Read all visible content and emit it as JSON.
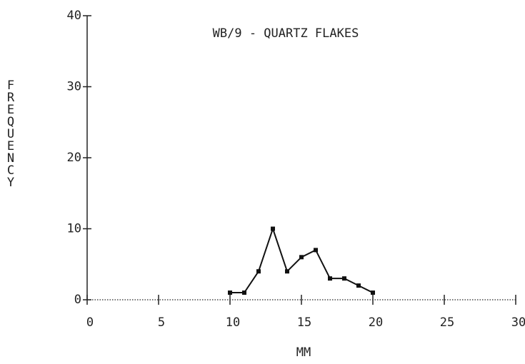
{
  "chart_data": {
    "type": "line",
    "title": "WB/9 - QUARTZ FLAKES",
    "x_label": "MM",
    "y_label": "FREQUENCY",
    "series": [
      {
        "name": null,
        "color": "#111111",
        "x": [
          10,
          11,
          12,
          13,
          14,
          15,
          16,
          17,
          18,
          19,
          20
        ],
        "values": [
          1,
          1,
          4,
          10,
          4,
          6,
          7,
          3,
          3,
          2,
          1
        ]
      }
    ],
    "xlim": [
      0,
      30
    ],
    "xticks": [
      0,
      5,
      10,
      15,
      20,
      25,
      30
    ],
    "ylim": [
      0,
      40
    ],
    "yticks": [
      0,
      10,
      20,
      30,
      40
    ],
    "grid": false
  }
}
